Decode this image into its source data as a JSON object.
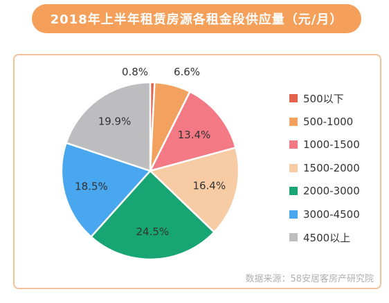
{
  "chart_data": {
    "type": "pie",
    "title": "2018年上半年租赁房源各租金段供应量（元/月）",
    "categories": [
      "500以下",
      "500-1000",
      "1000-1500",
      "1500-2000",
      "2000-3000",
      "3000-4500",
      "4500以上"
    ],
    "values": [
      0.8,
      6.6,
      13.4,
      16.4,
      24.5,
      18.5,
      19.9
    ],
    "value_labels": [
      "0.8%",
      "6.6%",
      "13.4%",
      "16.4%",
      "24.5%",
      "18.5%",
      "19.9%"
    ],
    "colors": [
      "#e2624e",
      "#f2a25e",
      "#f37a84",
      "#f7cba4",
      "#17a673",
      "#48a7ee",
      "#bdbdc0"
    ],
    "legend_position": "right",
    "source": "数据来源：58安居客房产研究院"
  }
}
